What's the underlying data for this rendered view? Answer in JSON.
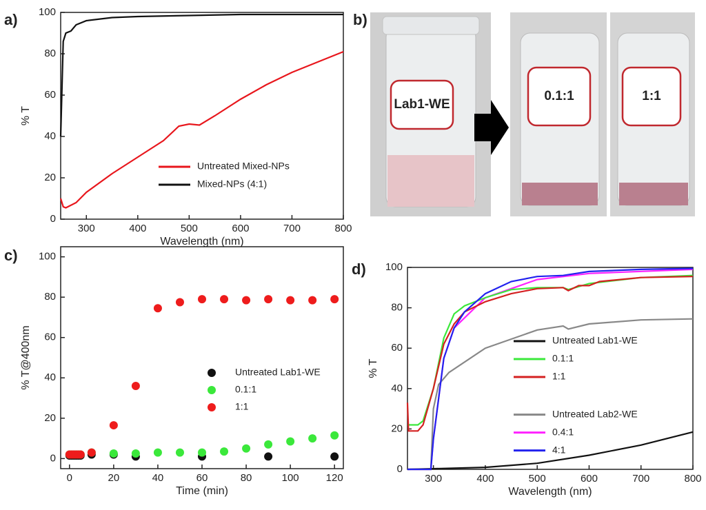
{
  "chart_data": [
    {
      "type": "line",
      "label": "a)",
      "xlabel": "Wavelength (nm)",
      "ylabel": "% T",
      "xlim": [
        250,
        800
      ],
      "ylim": [
        0,
        100
      ],
      "xticks": [
        300,
        400,
        500,
        600,
        700,
        800
      ],
      "yticks": [
        0,
        20,
        40,
        60,
        80,
        100
      ],
      "legend": "lower right",
      "series": [
        {
          "name": "Untreated Mixed-NPs",
          "color": "#e8161c",
          "x": [
            250,
            255,
            260,
            280,
            300,
            350,
            400,
            450,
            480,
            500,
            520,
            550,
            600,
            650,
            700,
            750,
            800
          ],
          "values": [
            10,
            6,
            5.5,
            8,
            13,
            22,
            30,
            38,
            45,
            46,
            45.5,
            50,
            58,
            65,
            71,
            76,
            81
          ]
        },
        {
          "name": "Mixed-NPs (4:1)",
          "color": "#111111",
          "x": [
            250,
            255,
            260,
            270,
            280,
            300,
            350,
            400,
            500,
            600,
            700,
            800
          ],
          "values": [
            40,
            86,
            90,
            91,
            94,
            96,
            97.5,
            98,
            98.5,
            99,
            99,
            99
          ]
        }
      ]
    },
    {
      "type": "scatter",
      "label": "c)",
      "xlabel": "Time (min)",
      "ylabel": "% T@400nm",
      "xlim": [
        -4,
        124
      ],
      "ylim": [
        -5,
        105
      ],
      "xticks": [
        0,
        20,
        40,
        60,
        80,
        100,
        120
      ],
      "yticks": [
        0,
        20,
        40,
        60,
        80,
        100
      ],
      "legend": "center right",
      "series": [
        {
          "name": "Untreated Lab1-WE",
          "color": "#111111",
          "x": [
            0,
            1,
            2,
            3,
            4,
            5,
            10,
            20,
            30,
            60,
            90,
            120
          ],
          "values": [
            1.5,
            1.5,
            1.5,
            1.5,
            1.5,
            1.5,
            2,
            2,
            1,
            1,
            1,
            1
          ]
        },
        {
          "name": "0.1:1",
          "color": "#3be83b",
          "x": [
            0,
            1,
            2,
            3,
            4,
            5,
            10,
            20,
            30,
            40,
            50,
            60,
            70,
            80,
            90,
            100,
            110,
            120
          ],
          "values": [
            2,
            2,
            2,
            2,
            2,
            2,
            3,
            2.5,
            2.5,
            3,
            3,
            3,
            3.5,
            5,
            7,
            8.5,
            10,
            11.5
          ]
        },
        {
          "name": "1:1",
          "color": "#ee1c1c",
          "x": [
            0,
            1,
            2,
            3,
            4,
            5,
            10,
            20,
            30,
            40,
            50,
            60,
            70,
            80,
            90,
            100,
            110,
            120
          ],
          "values": [
            2,
            2,
            2,
            2,
            2,
            2,
            3,
            16.5,
            36,
            74.5,
            77.5,
            79,
            79,
            78.5,
            79,
            78.5,
            78.5,
            79
          ]
        }
      ]
    },
    {
      "type": "line",
      "label": "d)",
      "xlabel": "Wavelength (nm)",
      "ylabel": "% T",
      "xlim": [
        250,
        800
      ],
      "ylim": [
        0,
        100
      ],
      "xticks": [
        300,
        400,
        500,
        600,
        700,
        800
      ],
      "yticks": [
        0,
        20,
        40,
        60,
        80,
        100
      ],
      "legend": "lower right",
      "series": [
        {
          "name": "Untreated Lab1-WE",
          "color": "#111111",
          "x": [
            250,
            300,
            400,
            500,
            600,
            700,
            800
          ],
          "values": [
            0,
            0.3,
            1,
            3,
            7,
            12,
            18.5
          ]
        },
        {
          "name": "0.1:1",
          "color": "#3be83b",
          "x": [
            250,
            270,
            280,
            300,
            320,
            340,
            360,
            400,
            450,
            500,
            550,
            560,
            600,
            700,
            800
          ],
          "values": [
            22,
            22,
            24,
            40,
            65,
            77,
            81,
            85,
            89,
            90,
            90,
            89,
            92,
            95,
            96
          ]
        },
        {
          "name": "1:1",
          "color": "#d42020",
          "x": [
            250,
            252,
            270,
            280,
            300,
            320,
            340,
            360,
            400,
            450,
            500,
            550,
            560,
            580,
            600,
            620,
            700,
            800
          ],
          "values": [
            33,
            19,
            19,
            22,
            40,
            62,
            72,
            78,
            83,
            87,
            89.5,
            90,
            88.5,
            91,
            91,
            93,
            95,
            95.5
          ]
        },
        {
          "name": "Untreated Lab2-WE",
          "color": "#888888",
          "x": [
            250,
            295,
            300,
            310,
            330,
            400,
            500,
            550,
            560,
            600,
            700,
            800
          ],
          "values": [
            0,
            0,
            30,
            42,
            48,
            60,
            69,
            71,
            69.5,
            72,
            74,
            74.5
          ]
        },
        {
          "name": "0.4:1",
          "color": "#ff22ff",
          "x": [
            250,
            295,
            300,
            320,
            340,
            400,
            500,
            600,
            800
          ],
          "values": [
            0,
            0,
            15,
            55,
            70,
            85,
            94,
            97,
            99
          ]
        },
        {
          "name": "4:1",
          "color": "#2222ee",
          "x": [
            250,
            295,
            300,
            320,
            340,
            360,
            400,
            450,
            500,
            550,
            600,
            700,
            800
          ],
          "values": [
            0,
            0,
            15,
            55,
            70,
            78,
            87,
            93,
            95.5,
            96,
            98,
            99,
            99.5
          ]
        }
      ]
    }
  ],
  "photos": {
    "label": "b)",
    "labels": [
      "Lab1-WE",
      "0.1:1",
      "1:1"
    ]
  }
}
